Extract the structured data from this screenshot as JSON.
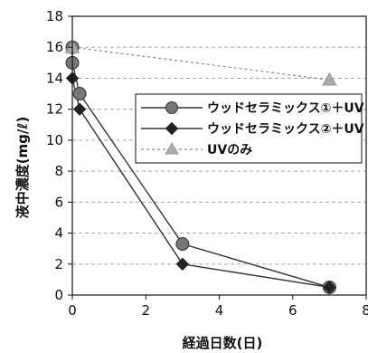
{
  "chart_data": {
    "type": "line",
    "title": "",
    "xlabel": "経過日数(日)",
    "ylabel": "液中濃度(mg/ℓ)",
    "xlim": [
      0,
      8
    ],
    "ylim": [
      0,
      18
    ],
    "xticks": [
      0,
      2,
      4,
      6,
      8
    ],
    "yticks": [
      0,
      2,
      4,
      6,
      8,
      10,
      12,
      14,
      16,
      18
    ],
    "grid": "horizontal-dashed",
    "legend_position": "right",
    "series": [
      {
        "name": "ウッドセラミックス①＋UV",
        "marker": "circle",
        "line": "solid",
        "color": "#333333",
        "marker_color": "#777777",
        "x": [
          0,
          0,
          0.2,
          3,
          7
        ],
        "y": [
          16,
          15,
          13,
          3.3,
          0.5
        ]
      },
      {
        "name": "ウッドセラミックス②＋UV",
        "marker": "diamond",
        "line": "solid",
        "color": "#333333",
        "marker_color": "#222222",
        "x": [
          0,
          0.2,
          3,
          7
        ],
        "y": [
          14,
          12,
          2,
          0.5
        ]
      },
      {
        "name": "UVのみ",
        "marker": "triangle",
        "line": "dashed",
        "color": "#888888",
        "marker_color": "#aaaaaa",
        "x": [
          0,
          7
        ],
        "y": [
          16,
          13.9
        ]
      }
    ]
  }
}
